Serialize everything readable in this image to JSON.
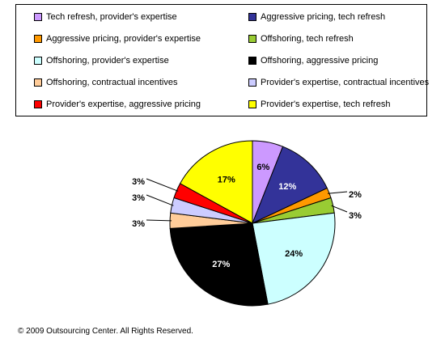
{
  "chart_data": {
    "type": "pie",
    "title": "",
    "legend_position": "top",
    "slices": [
      {
        "label": "Tech refresh, provider's expertise",
        "value": 6,
        "value_label": "6%",
        "color": "#cc99ff"
      },
      {
        "label": "Aggressive pricing, tech refresh",
        "value": 12,
        "value_label": "12%",
        "color": "#333399"
      },
      {
        "label": "Aggressive pricing, provider's expertise",
        "value": 2,
        "value_label": "2%",
        "color": "#ff9900"
      },
      {
        "label": "Offshoring, tech refresh",
        "value": 3,
        "value_label": "3%",
        "color": "#99cc33"
      },
      {
        "label": "Offshoring, provider's expertise",
        "value": 24,
        "value_label": "24%",
        "color": "#ccffff"
      },
      {
        "label": "Offshoring, aggressive pricing",
        "value": 27,
        "value_label": "27%",
        "color": "#000000"
      },
      {
        "label": "Offshoring, contractual incentives",
        "value": 3,
        "value_label": "3%",
        "color": "#ffcc99"
      },
      {
        "label": "Provider's expertise, contractual incentives",
        "value": 3,
        "value_label": "3%",
        "color": "#ccccff"
      },
      {
        "label": "Provider's expertise, aggressive pricing",
        "value": 3,
        "value_label": "3%",
        "color": "#ff0000"
      },
      {
        "label": "Provider's expertise, tech refresh",
        "value": 17,
        "value_label": "17%",
        "color": "#ffff00"
      }
    ]
  },
  "footer": {
    "copyright": "© 2009 Outsourcing Center. All Rights Reserved."
  }
}
